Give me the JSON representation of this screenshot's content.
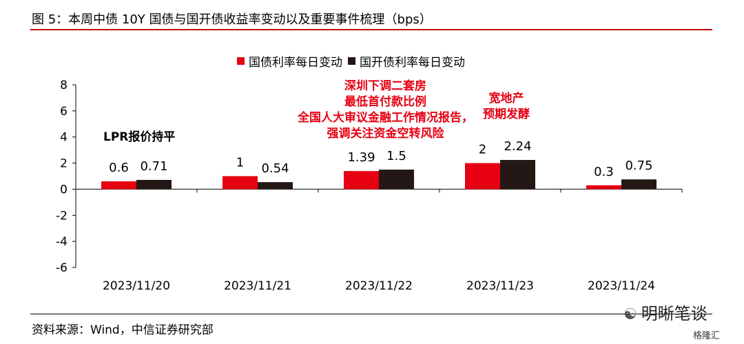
{
  "header": {
    "title": "图 5：本周中债 10Y 国债与国开债收益率变动以及重要事件梳理（bps）"
  },
  "footer": {
    "source": "资料来源：Wind，中信证券研究部",
    "watermark": "明晰笔谈",
    "watermark_small": "格隆汇"
  },
  "colors": {
    "series1": "#e60012",
    "series2": "#231815",
    "accent_rule": "#c00000"
  },
  "chart_data": {
    "type": "bar",
    "categories": [
      "2023/11/20",
      "2023/11/21",
      "2023/11/22",
      "2023/11/23",
      "2023/11/24"
    ],
    "series": [
      {
        "name": "国债利率每日变动",
        "values": [
          0.6,
          1,
          1.39,
          2,
          0.3
        ],
        "labels": [
          "0.6",
          "1",
          "1.39",
          "2",
          "0.3"
        ]
      },
      {
        "name": "国开债利率每日变动",
        "values": [
          0.71,
          0.54,
          1.5,
          2.24,
          0.75
        ],
        "labels": [
          "0.71",
          "0.54",
          "1.5",
          "2.24",
          "0.75"
        ]
      }
    ],
    "ylim": [
      -6,
      8
    ],
    "yticks": [
      "8",
      "6",
      "4",
      "2",
      "0",
      "-2",
      "-4",
      "-6"
    ],
    "legend_position": "top",
    "grid": false,
    "annotations": {
      "a1": "LPR报价持平",
      "a2": [
        "深圳下调二套房",
        "最低首付款比例",
        "全国人大审议金融工作情况报告，",
        "强调关注资金空转风险"
      ],
      "a3": [
        "宽地产",
        "预期发酵"
      ]
    }
  }
}
